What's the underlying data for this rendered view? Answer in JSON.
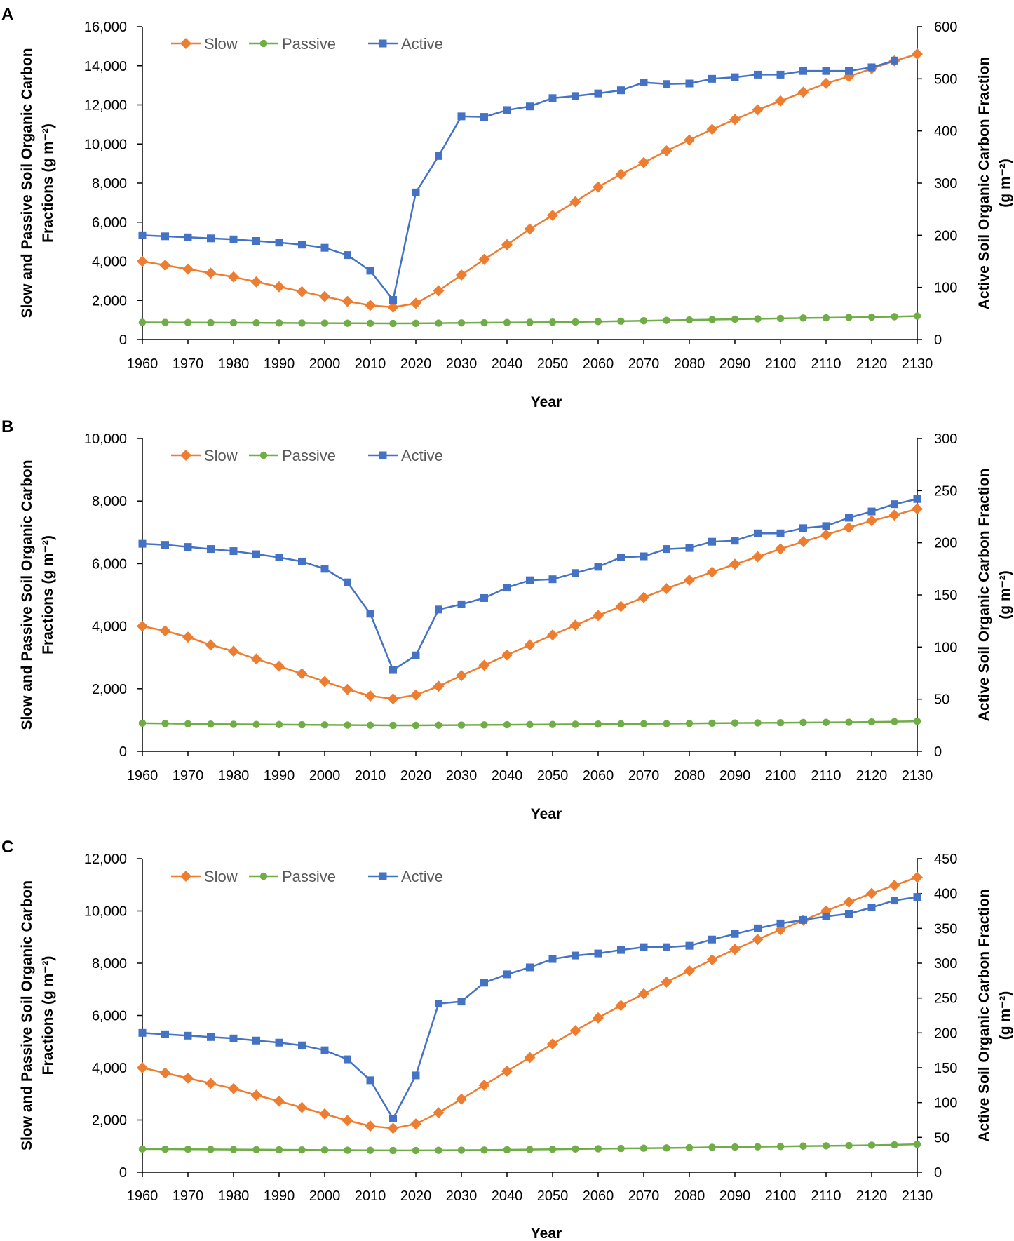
{
  "chart_data": [
    {
      "panel": "A",
      "type": "line",
      "xlabel": "Year",
      "ylabel_left": "Slow and Passive Soil Organic Carbon Fractions (g m⁻²)",
      "ylabel_left_lines": [
        "Slow and Passive Soil Organic Carbon",
        "Fractions (g m⁻²)"
      ],
      "ylabel_right_lines": [
        "Active Soil Organic Carbon Fraction",
        "(g m⁻²)"
      ],
      "ylim_left": [
        0,
        16000
      ],
      "yticks_left": [
        "0",
        "2,000",
        "4,000",
        "6,000",
        "8,000",
        "10,000",
        "12,000",
        "14,000",
        "16,000"
      ],
      "ylim_right": [
        0,
        600
      ],
      "yticks_right": [
        "0",
        "100",
        "200",
        "300",
        "400",
        "500",
        "600"
      ],
      "xticks": [
        "1960",
        "1970",
        "1980",
        "1990",
        "2000",
        "2010",
        "2020",
        "2030",
        "2040",
        "2050",
        "2060",
        "2070",
        "2080",
        "2090",
        "2100",
        "2110",
        "2120",
        "2130"
      ],
      "x": [
        1960,
        1965,
        1970,
        1975,
        1980,
        1985,
        1990,
        1995,
        2000,
        2005,
        2010,
        2015,
        2020,
        2025,
        2030,
        2035,
        2040,
        2045,
        2050,
        2055,
        2060,
        2065,
        2070,
        2075,
        2080,
        2085,
        2090,
        2095,
        2100,
        2105,
        2110,
        2115,
        2120,
        2125,
        2130
      ],
      "series": [
        {
          "name": "Slow",
          "axis": "left",
          "color": "#ED7D31",
          "marker": "diamond",
          "values": [
            4000,
            3800,
            3600,
            3400,
            3200,
            2950,
            2700,
            2450,
            2200,
            1950,
            1750,
            1650,
            1850,
            2500,
            3300,
            4100,
            4850,
            5650,
            6350,
            7050,
            7800,
            8450,
            9050,
            9650,
            10200,
            10750,
            11250,
            11750,
            12200,
            12650,
            13100,
            13450,
            13850,
            14250,
            14600
          ]
        },
        {
          "name": "Passive",
          "axis": "left",
          "color": "#70AD47",
          "marker": "circle",
          "values": [
            880,
            875,
            870,
            865,
            860,
            855,
            850,
            845,
            840,
            835,
            830,
            825,
            830,
            840,
            850,
            860,
            870,
            880,
            890,
            900,
            920,
            940,
            960,
            980,
            1000,
            1020,
            1040,
            1060,
            1080,
            1100,
            1110,
            1130,
            1150,
            1170,
            1200
          ]
        },
        {
          "name": "Active",
          "axis": "right",
          "color": "#4472C4",
          "marker": "square",
          "values": [
            200,
            198,
            196,
            194,
            192,
            189,
            186,
            182,
            176,
            162,
            132,
            76,
            282,
            352,
            428,
            427,
            440,
            447,
            463,
            467,
            472,
            478,
            493,
            490,
            491,
            500,
            503,
            508,
            508,
            515,
            515,
            515,
            522,
            535,
            null
          ]
        }
      ]
    },
    {
      "panel": "B",
      "type": "line",
      "xlabel": "Year",
      "ylabel_left": "Slow and Passive Soil Organic Carbon Fractions (g m⁻²)",
      "ylabel_left_lines": [
        "Slow and Passive Soil Organic Carbon",
        "Fractions (g m⁻²)"
      ],
      "ylabel_right_lines": [
        "Active Soil Organic Carbon Fraction",
        "(g m⁻²)"
      ],
      "ylim_left": [
        0,
        10000
      ],
      "yticks_left": [
        "0",
        "2,000",
        "4,000",
        "6,000",
        "8,000",
        "10,000"
      ],
      "ylim_right": [
        0,
        300
      ],
      "yticks_right": [
        "0",
        "50",
        "100",
        "150",
        "200",
        "250",
        "300"
      ],
      "xticks": [
        "1960",
        "1970",
        "1980",
        "1990",
        "2000",
        "2010",
        "2020",
        "2030",
        "2040",
        "2050",
        "2060",
        "2070",
        "2080",
        "2090",
        "2100",
        "2110",
        "2120",
        "2130"
      ],
      "x": [
        1960,
        1965,
        1970,
        1975,
        1980,
        1985,
        1990,
        1995,
        2000,
        2005,
        2010,
        2015,
        2020,
        2025,
        2030,
        2035,
        2040,
        2045,
        2050,
        2055,
        2060,
        2065,
        2070,
        2075,
        2080,
        2085,
        2090,
        2095,
        2100,
        2105,
        2110,
        2115,
        2120,
        2125,
        2130
      ],
      "series": [
        {
          "name": "Slow",
          "axis": "left",
          "color": "#ED7D31",
          "marker": "diamond",
          "values": [
            4000,
            3850,
            3650,
            3400,
            3200,
            2950,
            2720,
            2480,
            2230,
            1980,
            1770,
            1680,
            1800,
            2080,
            2420,
            2750,
            3080,
            3400,
            3720,
            4030,
            4340,
            4630,
            4920,
            5200,
            5470,
            5730,
            5980,
            6220,
            6470,
            6700,
            6920,
            7150,
            7370,
            7550,
            7750
          ]
        },
        {
          "name": "Passive",
          "axis": "left",
          "color": "#70AD47",
          "marker": "circle",
          "values": [
            900,
            890,
            880,
            870,
            865,
            860,
            855,
            850,
            845,
            840,
            835,
            830,
            830,
            835,
            840,
            845,
            850,
            855,
            860,
            865,
            870,
            875,
            880,
            885,
            890,
            900,
            905,
            910,
            915,
            920,
            925,
            930,
            940,
            950,
            960
          ]
        },
        {
          "name": "Active",
          "axis": "right",
          "color": "#4472C4",
          "marker": "square",
          "values": [
            199,
            198,
            196,
            194,
            192,
            189,
            186,
            182,
            175,
            162,
            132,
            78,
            92,
            136,
            141,
            147,
            157,
            164,
            165,
            171,
            177,
            186,
            187,
            194,
            195,
            201,
            202,
            209,
            209,
            214,
            216,
            224,
            230,
            237,
            242
          ]
        }
      ]
    },
    {
      "panel": "C",
      "type": "line",
      "xlabel": "Year",
      "ylabel_left": "Slow and Passive Soil Organic Carbon Fractions (g m⁻²)",
      "ylabel_left_lines": [
        "Slow and Passive Soil Organic Carbon",
        "Fractions (g m⁻²)"
      ],
      "ylabel_right_lines": [
        "Active Soil Organic Carbon Fraction",
        "(g m⁻²)"
      ],
      "ylim_left": [
        0,
        12000
      ],
      "yticks_left": [
        "0",
        "2,000",
        "4,000",
        "6,000",
        "8,000",
        "10,000",
        "12,000"
      ],
      "ylim_right": [
        0,
        450
      ],
      "yticks_right": [
        "0",
        "50",
        "100",
        "150",
        "200",
        "250",
        "300",
        "350",
        "400",
        "450"
      ],
      "xticks": [
        "1960",
        "1970",
        "1980",
        "1990",
        "2000",
        "2010",
        "2020",
        "2030",
        "2040",
        "2050",
        "2060",
        "2070",
        "2080",
        "2090",
        "2100",
        "2110",
        "2120",
        "2130"
      ],
      "x": [
        1960,
        1965,
        1970,
        1975,
        1980,
        1985,
        1990,
        1995,
        2000,
        2005,
        2010,
        2015,
        2020,
        2025,
        2030,
        2035,
        2040,
        2045,
        2050,
        2055,
        2060,
        2065,
        2070,
        2075,
        2080,
        2085,
        2090,
        2095,
        2100,
        2105,
        2110,
        2115,
        2120,
        2125,
        2130
      ],
      "series": [
        {
          "name": "Slow",
          "axis": "left",
          "color": "#ED7D31",
          "marker": "diamond",
          "values": [
            4000,
            3800,
            3600,
            3400,
            3200,
            2950,
            2720,
            2480,
            2230,
            1980,
            1770,
            1680,
            1850,
            2280,
            2800,
            3330,
            3870,
            4390,
            4910,
            5420,
            5910,
            6380,
            6830,
            7280,
            7710,
            8130,
            8530,
            8910,
            9280,
            9640,
            10000,
            10340,
            10670,
            10980,
            11290
          ]
        },
        {
          "name": "Passive",
          "axis": "left",
          "color": "#70AD47",
          "marker": "circle",
          "values": [
            890,
            885,
            880,
            875,
            870,
            865,
            860,
            855,
            850,
            845,
            840,
            835,
            835,
            840,
            845,
            850,
            860,
            870,
            880,
            890,
            900,
            910,
            920,
            930,
            940,
            955,
            965,
            975,
            985,
            1000,
            1010,
            1020,
            1035,
            1050,
            1070
          ]
        },
        {
          "name": "Active",
          "axis": "right",
          "color": "#4472C4",
          "marker": "square",
          "values": [
            200,
            198,
            196,
            194,
            192,
            189,
            186,
            182,
            175,
            162,
            132,
            77,
            139,
            242,
            245,
            272,
            284,
            294,
            306,
            311,
            314,
            319,
            323,
            323,
            325,
            334,
            342,
            350,
            357,
            362,
            367,
            371,
            380,
            390,
            395
          ]
        }
      ]
    }
  ]
}
